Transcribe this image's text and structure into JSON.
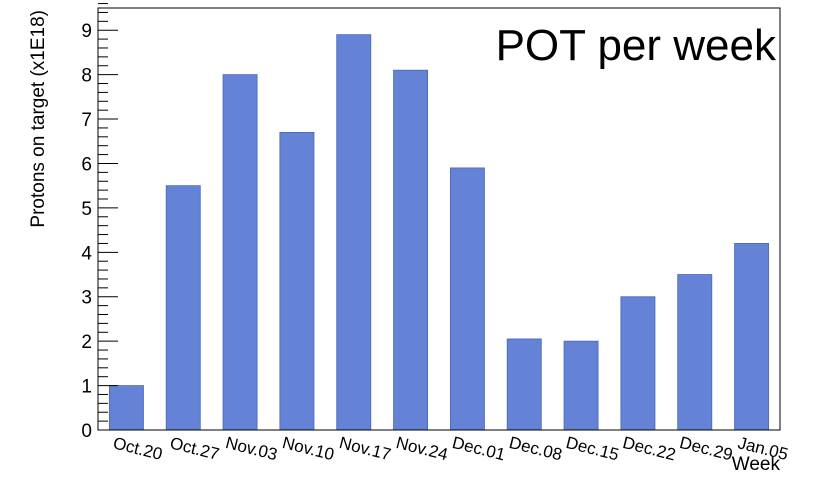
{
  "chart_data": {
    "type": "bar",
    "title": "POT per week",
    "xlabel": "Week",
    "ylabel": "Protons on target (x1E18)",
    "categories": [
      "Oct.20",
      "Oct.27",
      "Nov.03",
      "Nov.10",
      "Nov.17",
      "Nov.24",
      "Dec.01",
      "Dec.08",
      "Dec.15",
      "Dec.22",
      "Dec.29",
      "Jan.05"
    ],
    "values": [
      1.0,
      5.5,
      8.0,
      6.7,
      8.9,
      8.1,
      5.9,
      2.05,
      2.0,
      3.0,
      3.5,
      4.2
    ],
    "ylim": [
      0,
      9.5
    ],
    "yticks": [
      "0",
      "1",
      "2",
      "3",
      "4",
      "5",
      "6",
      "7",
      "8",
      "9"
    ],
    "grid": false,
    "colors": {
      "bar": "#6483d6",
      "bar_edge": "#4a66b8",
      "axis": "#000000"
    }
  }
}
